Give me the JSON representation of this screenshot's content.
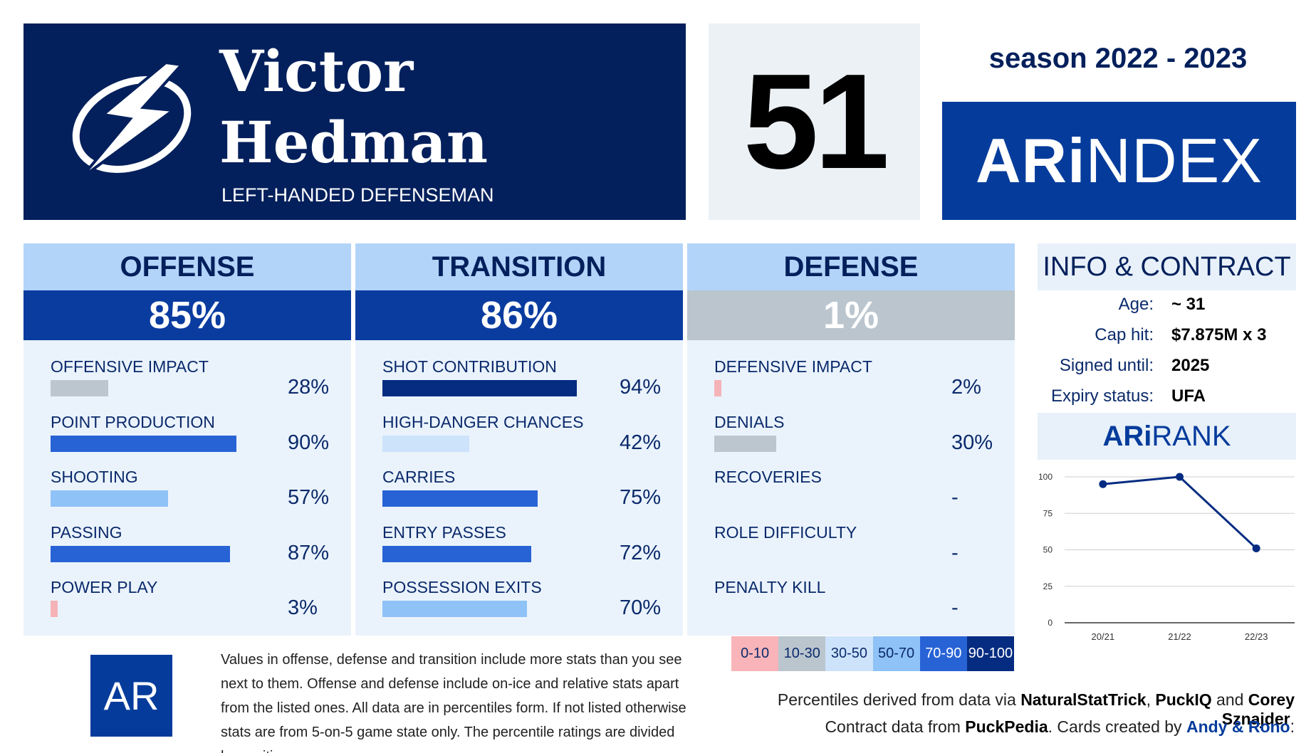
{
  "player": {
    "first_name": "Victor",
    "last_name": "Hedman",
    "position": "LEFT-HANDED DEFENSEMAN",
    "number": "51",
    "team_logo": "lightning-bolt-icon"
  },
  "season": "season 2022 - 2023",
  "brand": {
    "prefix": "ARi",
    "suffix": "NDEX"
  },
  "colors": {
    "navy": "#03205c",
    "royal": "#053c9c",
    "header_light": "#b3d4f9",
    "panel_bg": "#eaf3fc",
    "grey": "#bac5ce"
  },
  "categories": [
    {
      "title": "OFFENSE",
      "percent": "85%",
      "percent_bg": "#0a3ca0",
      "stats": [
        {
          "label": "OFFENSIVE IMPACT",
          "value": "28%",
          "level": 0.28,
          "color": "#bcc6cf"
        },
        {
          "label": "POINT PRODUCTION",
          "value": "90%",
          "level": 0.9,
          "color": "#2863d6"
        },
        {
          "label": "SHOOTING",
          "value": "57%",
          "level": 0.57,
          "color": "#8fc2f7"
        },
        {
          "label": "PASSING",
          "value": "87%",
          "level": 0.87,
          "color": "#2863d6"
        },
        {
          "label": "POWER PLAY",
          "value": "3%",
          "level": 0.03,
          "color": "#f5b3b8"
        }
      ]
    },
    {
      "title": "TRANSITION",
      "percent": "86%",
      "percent_bg": "#0a3ca0",
      "stats": [
        {
          "label": "SHOT CONTRIBUTION",
          "value": "94%",
          "level": 0.94,
          "color": "#062c82"
        },
        {
          "label": "HIGH-DANGER CHANCES",
          "value": "42%",
          "level": 0.42,
          "color": "#cde3fb"
        },
        {
          "label": "CARRIES",
          "value": "75%",
          "level": 0.75,
          "color": "#2863d6"
        },
        {
          "label": "ENTRY PASSES",
          "value": "72%",
          "level": 0.72,
          "color": "#2863d6"
        },
        {
          "label": "POSSESSION EXITS",
          "value": "70%",
          "level": 0.7,
          "color": "#8fc2f7"
        }
      ]
    },
    {
      "title": "DEFENSE",
      "percent": "1%",
      "percent_bg": "#bac5ce",
      "stats": [
        {
          "label": "DEFENSIVE IMPACT",
          "value": "2%",
          "level": 0.02,
          "color": "#f5b3b8"
        },
        {
          "label": "DENIALS",
          "value": "30%",
          "level": 0.3,
          "color": "#bcc6cf"
        },
        {
          "label": "RECOVERIES",
          "value": "-",
          "level": 0,
          "color": "#eaf3fc"
        },
        {
          "label": "ROLE DIFFICULTY",
          "value": "-",
          "level": 0,
          "color": "#eaf3fc"
        },
        {
          "label": "PENALTY KILL",
          "value": "-",
          "level": 0,
          "color": "#eaf3fc"
        }
      ]
    }
  ],
  "info": {
    "title": "INFO & CONTRACT",
    "rows": [
      {
        "key": "Age:",
        "value": "~ 31"
      },
      {
        "key": "Cap hit:",
        "value": "$7.875M x 3"
      },
      {
        "key": "Signed until:",
        "value": "2025"
      },
      {
        "key": "Expiry status:",
        "value": "UFA"
      }
    ]
  },
  "rank": {
    "prefix": "ARi",
    "suffix": "RANK"
  },
  "chart_data": {
    "type": "line",
    "categories": [
      "20/21",
      "21/22",
      "22/23"
    ],
    "series": [
      {
        "values": [
          95,
          100,
          51
        ]
      }
    ],
    "ylim": [
      0,
      100
    ],
    "yticks": [
      "0",
      "25",
      "50",
      "75",
      "100"
    ],
    "grid": true,
    "line_color": "#062c82"
  },
  "legend": [
    {
      "label": "0-10",
      "bg": "#f8b4b8",
      "fg": "#0b2a6b"
    },
    {
      "label": "10-30",
      "bg": "#bac5ce",
      "fg": "#0b2a6b"
    },
    {
      "label": "30-50",
      "bg": "#cde3fb",
      "fg": "#0b2a6b"
    },
    {
      "label": "50-70",
      "bg": "#8fc2f7",
      "fg": "#0b2a6b"
    },
    {
      "label": "70-90",
      "bg": "#2863d6",
      "fg": "#ffffff"
    },
    {
      "label": "90-100",
      "bg": "#062c82",
      "fg": "#ffffff"
    }
  ],
  "footer": {
    "logo_text": "AR",
    "note": "Values in offense, defense and transition include more stats than you see next to them. Offense and defense include on-ice and relative stats apart from the listed ones. All data are in percentiles form. If not listed otherwise stats are from 5-on-5 game state only. The percentile ratings are divided by position.",
    "credits1": {
      "a": "Percentiles derived from data via ",
      "s1": "NaturalStatTrick",
      "b": ", ",
      "s2": "PuckIQ",
      "c": " and ",
      "s3": "Corey Sznajder",
      "d": "."
    },
    "credits2": {
      "a": "Contract data from ",
      "s1": "PuckPedia",
      "b": ". Cards created by ",
      "s2": "Andy & Rono",
      "c": "."
    }
  }
}
